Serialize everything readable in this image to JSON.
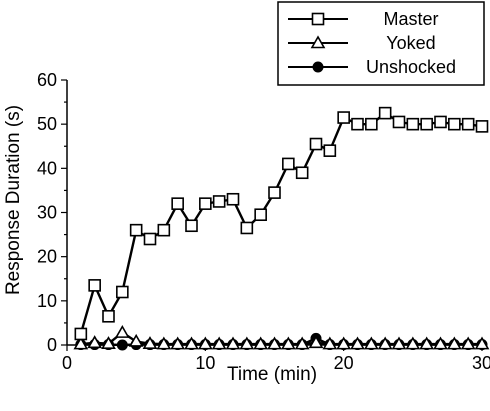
{
  "chart_data": {
    "type": "line",
    "xlabel": "Time (min)",
    "ylabel": "Response Duration (s)",
    "xlim": [
      0,
      30
    ],
    "ylim": [
      0,
      60
    ],
    "x_ticks": [
      "0",
      "10",
      "20",
      "30"
    ],
    "y_ticks": [
      "0",
      "10",
      "20",
      "30",
      "40",
      "50",
      "60"
    ],
    "grid": false,
    "legend_position": "top-right",
    "series": [
      {
        "name": "Master",
        "marker": "open-square",
        "color": "#000000",
        "x": [
          1,
          2,
          3,
          4,
          5,
          6,
          7,
          8,
          9,
          10,
          11,
          12,
          13,
          14,
          15,
          16,
          17,
          18,
          19,
          20,
          21,
          22,
          23,
          24,
          25,
          26,
          27,
          28,
          29,
          30
        ],
        "values": [
          2.5,
          13.5,
          6.5,
          12,
          26,
          24,
          26,
          32,
          27,
          32,
          32.5,
          33,
          26.5,
          29.5,
          34.5,
          41,
          39,
          45.5,
          44,
          51.5,
          50,
          50,
          52.5,
          50.5,
          50,
          50,
          50.5,
          50,
          50,
          49.5
        ]
      },
      {
        "name": "Yoked",
        "marker": "open-triangle",
        "color": "#000000",
        "x": [
          1,
          2,
          3,
          4,
          5,
          6,
          7,
          8,
          9,
          10,
          11,
          12,
          13,
          14,
          15,
          16,
          17,
          18,
          19,
          20,
          21,
          22,
          23,
          24,
          25,
          26,
          27,
          28,
          29,
          30
        ],
        "values": [
          0.2,
          0.5,
          0.3,
          2.8,
          0.8,
          0.3,
          0.2,
          0.2,
          0.2,
          0.2,
          0.2,
          0.2,
          0.2,
          0.2,
          0.2,
          0.2,
          0.2,
          0.5,
          0.2,
          0.2,
          0.2,
          0.2,
          0.2,
          0.2,
          0.2,
          0.2,
          0.2,
          0.2,
          0.2,
          0.2
        ]
      },
      {
        "name": "Unshocked",
        "marker": "filled-circle",
        "color": "#000000",
        "x": [
          1,
          2,
          3,
          4,
          5,
          6,
          7,
          8,
          9,
          10,
          11,
          12,
          13,
          14,
          15,
          16,
          17,
          18,
          19,
          20,
          21,
          22,
          23,
          24,
          25,
          26,
          27,
          28,
          29,
          30
        ],
        "values": [
          0.1,
          0.1,
          0.1,
          0,
          0.1,
          0.1,
          0.1,
          0.1,
          0.1,
          0.1,
          0.1,
          0.1,
          0.1,
          0.1,
          0.1,
          0.1,
          0.1,
          1.5,
          0.1,
          0.1,
          0.1,
          0.1,
          0.1,
          0.1,
          0.1,
          0.1,
          0.1,
          0.1,
          0.1,
          0.1
        ]
      }
    ]
  }
}
